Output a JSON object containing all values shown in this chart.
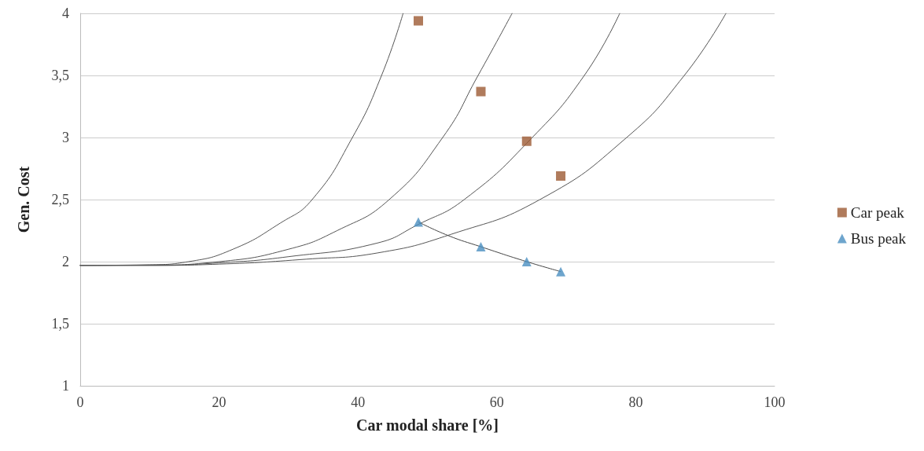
{
  "chart_data": {
    "type": "scatter",
    "xlabel": "Car modal share [%]",
    "ylabel": "Gen. Cost",
    "xlim": [
      0,
      100
    ],
    "xticks": [
      0,
      20,
      40,
      60,
      80,
      100
    ],
    "ylim": [
      1,
      4
    ],
    "yticks": [
      1,
      {
        "value": 1.5,
        "label": "1,5"
      },
      2,
      {
        "value": 2.5,
        "label": "2,5"
      },
      3,
      {
        "value": 3.5,
        "label": "3,5"
      },
      4
    ],
    "grid": "y",
    "legend": "right",
    "series": [
      {
        "type": "line",
        "color": "#555555",
        "marker": "none",
        "x": [
          0,
          10,
          15.6,
          22,
          28.8,
          33.4,
          39.2,
          43.4,
          46.5
        ],
        "values": [
          1.97,
          1.975,
          2,
          2.1,
          2.31,
          2.5,
          3,
          3.5,
          4
        ]
      },
      {
        "type": "line",
        "color": "#555555",
        "marker": "none",
        "x": [
          0,
          10,
          20,
          30,
          37,
          44.5,
          52.2,
          57.3,
          62.2
        ],
        "values": [
          1.97,
          1.972,
          2,
          2.1,
          2.25,
          2.5,
          3,
          3.5,
          4
        ]
      },
      {
        "type": "line",
        "color": "#555555",
        "marker": "none",
        "x": [
          0,
          10,
          20,
          30,
          42.8,
          48.7,
          55.3,
          65.1,
          72.6,
          77.7
        ],
        "values": [
          1.97,
          1.97,
          1.99,
          2.04,
          2.15,
          2.3,
          2.5,
          3,
          3.5,
          4
        ]
      },
      {
        "type": "line",
        "color": "#555555",
        "marker": "none",
        "x": [
          0,
          10,
          20,
          32.6,
          42.8,
          53.4,
          66.2,
          78.7,
          87,
          93
        ],
        "values": [
          1.97,
          1.97,
          1.98,
          2.02,
          2.07,
          2.22,
          2.5,
          3,
          3.5,
          4
        ]
      },
      {
        "type": "line",
        "color": "#444444",
        "marker": "none",
        "x": [
          48.7,
          53,
          57.7,
          64.3,
          69.2
        ],
        "values": [
          2.32,
          2.21,
          2.12,
          2,
          1.92
        ]
      },
      {
        "name": "Car peak",
        "color": "#9c5a33",
        "marker": "square",
        "x": [
          48.7,
          57.7,
          64.3,
          69.2
        ],
        "values": [
          3.94,
          3.37,
          2.97,
          2.69
        ]
      },
      {
        "name": "Bus peak",
        "color": "#4a8fc0",
        "marker": "triangle",
        "x": [
          48.7,
          57.7,
          64.3,
          69.2
        ],
        "values": [
          2.32,
          2.12,
          2,
          1.92
        ]
      }
    ]
  }
}
